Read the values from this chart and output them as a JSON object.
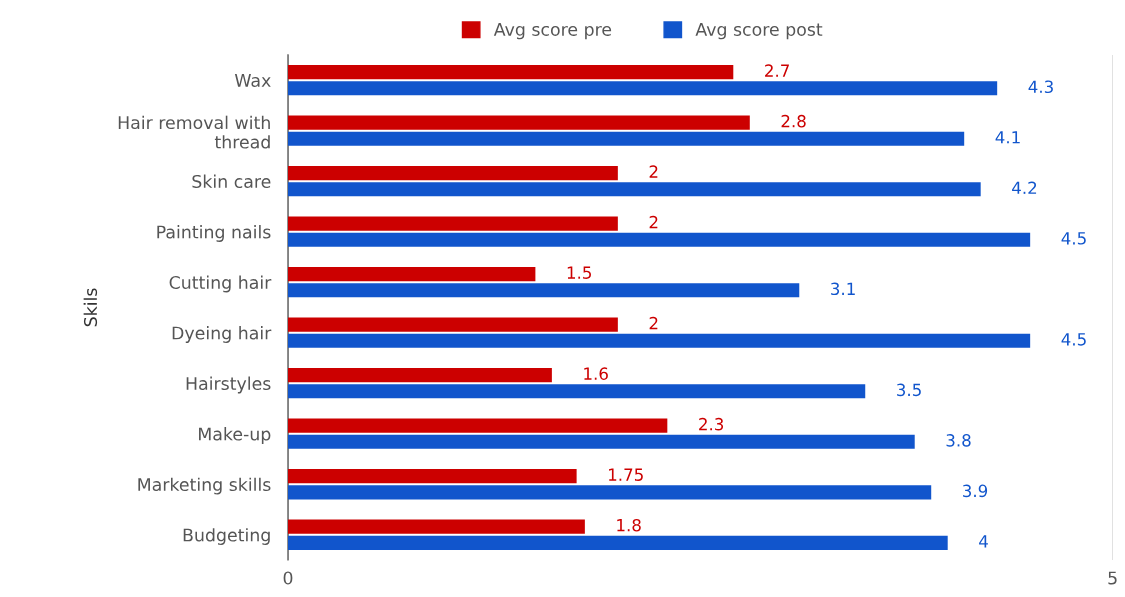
{
  "chart_data": {
    "type": "bar",
    "orientation": "horizontal",
    "ylabel": "Skils",
    "categories": [
      "Wax",
      "Hair removal with\nthread",
      "Skin care",
      "Painting nails",
      "Cutting hair",
      "Dyeing hair",
      "Hairstyles",
      "Make-up",
      "Marketing skills",
      "Budgeting"
    ],
    "series": [
      {
        "name": "Avg score pre",
        "color": "#cc0000",
        "values": [
          2.7,
          2.8,
          2,
          2,
          1.5,
          2,
          1.6,
          2.3,
          1.75,
          1.8
        ]
      },
      {
        "name": "Avg score post",
        "color": "#1155cc",
        "values": [
          4.3,
          4.1,
          4.2,
          4.5,
          3.1,
          4.5,
          3.5,
          3.8,
          3.9,
          4
        ]
      }
    ],
    "xlim": [
      0,
      5
    ],
    "xticks": [
      0,
      5
    ],
    "grid": "x",
    "legend": "top",
    "data_labels": true
  }
}
